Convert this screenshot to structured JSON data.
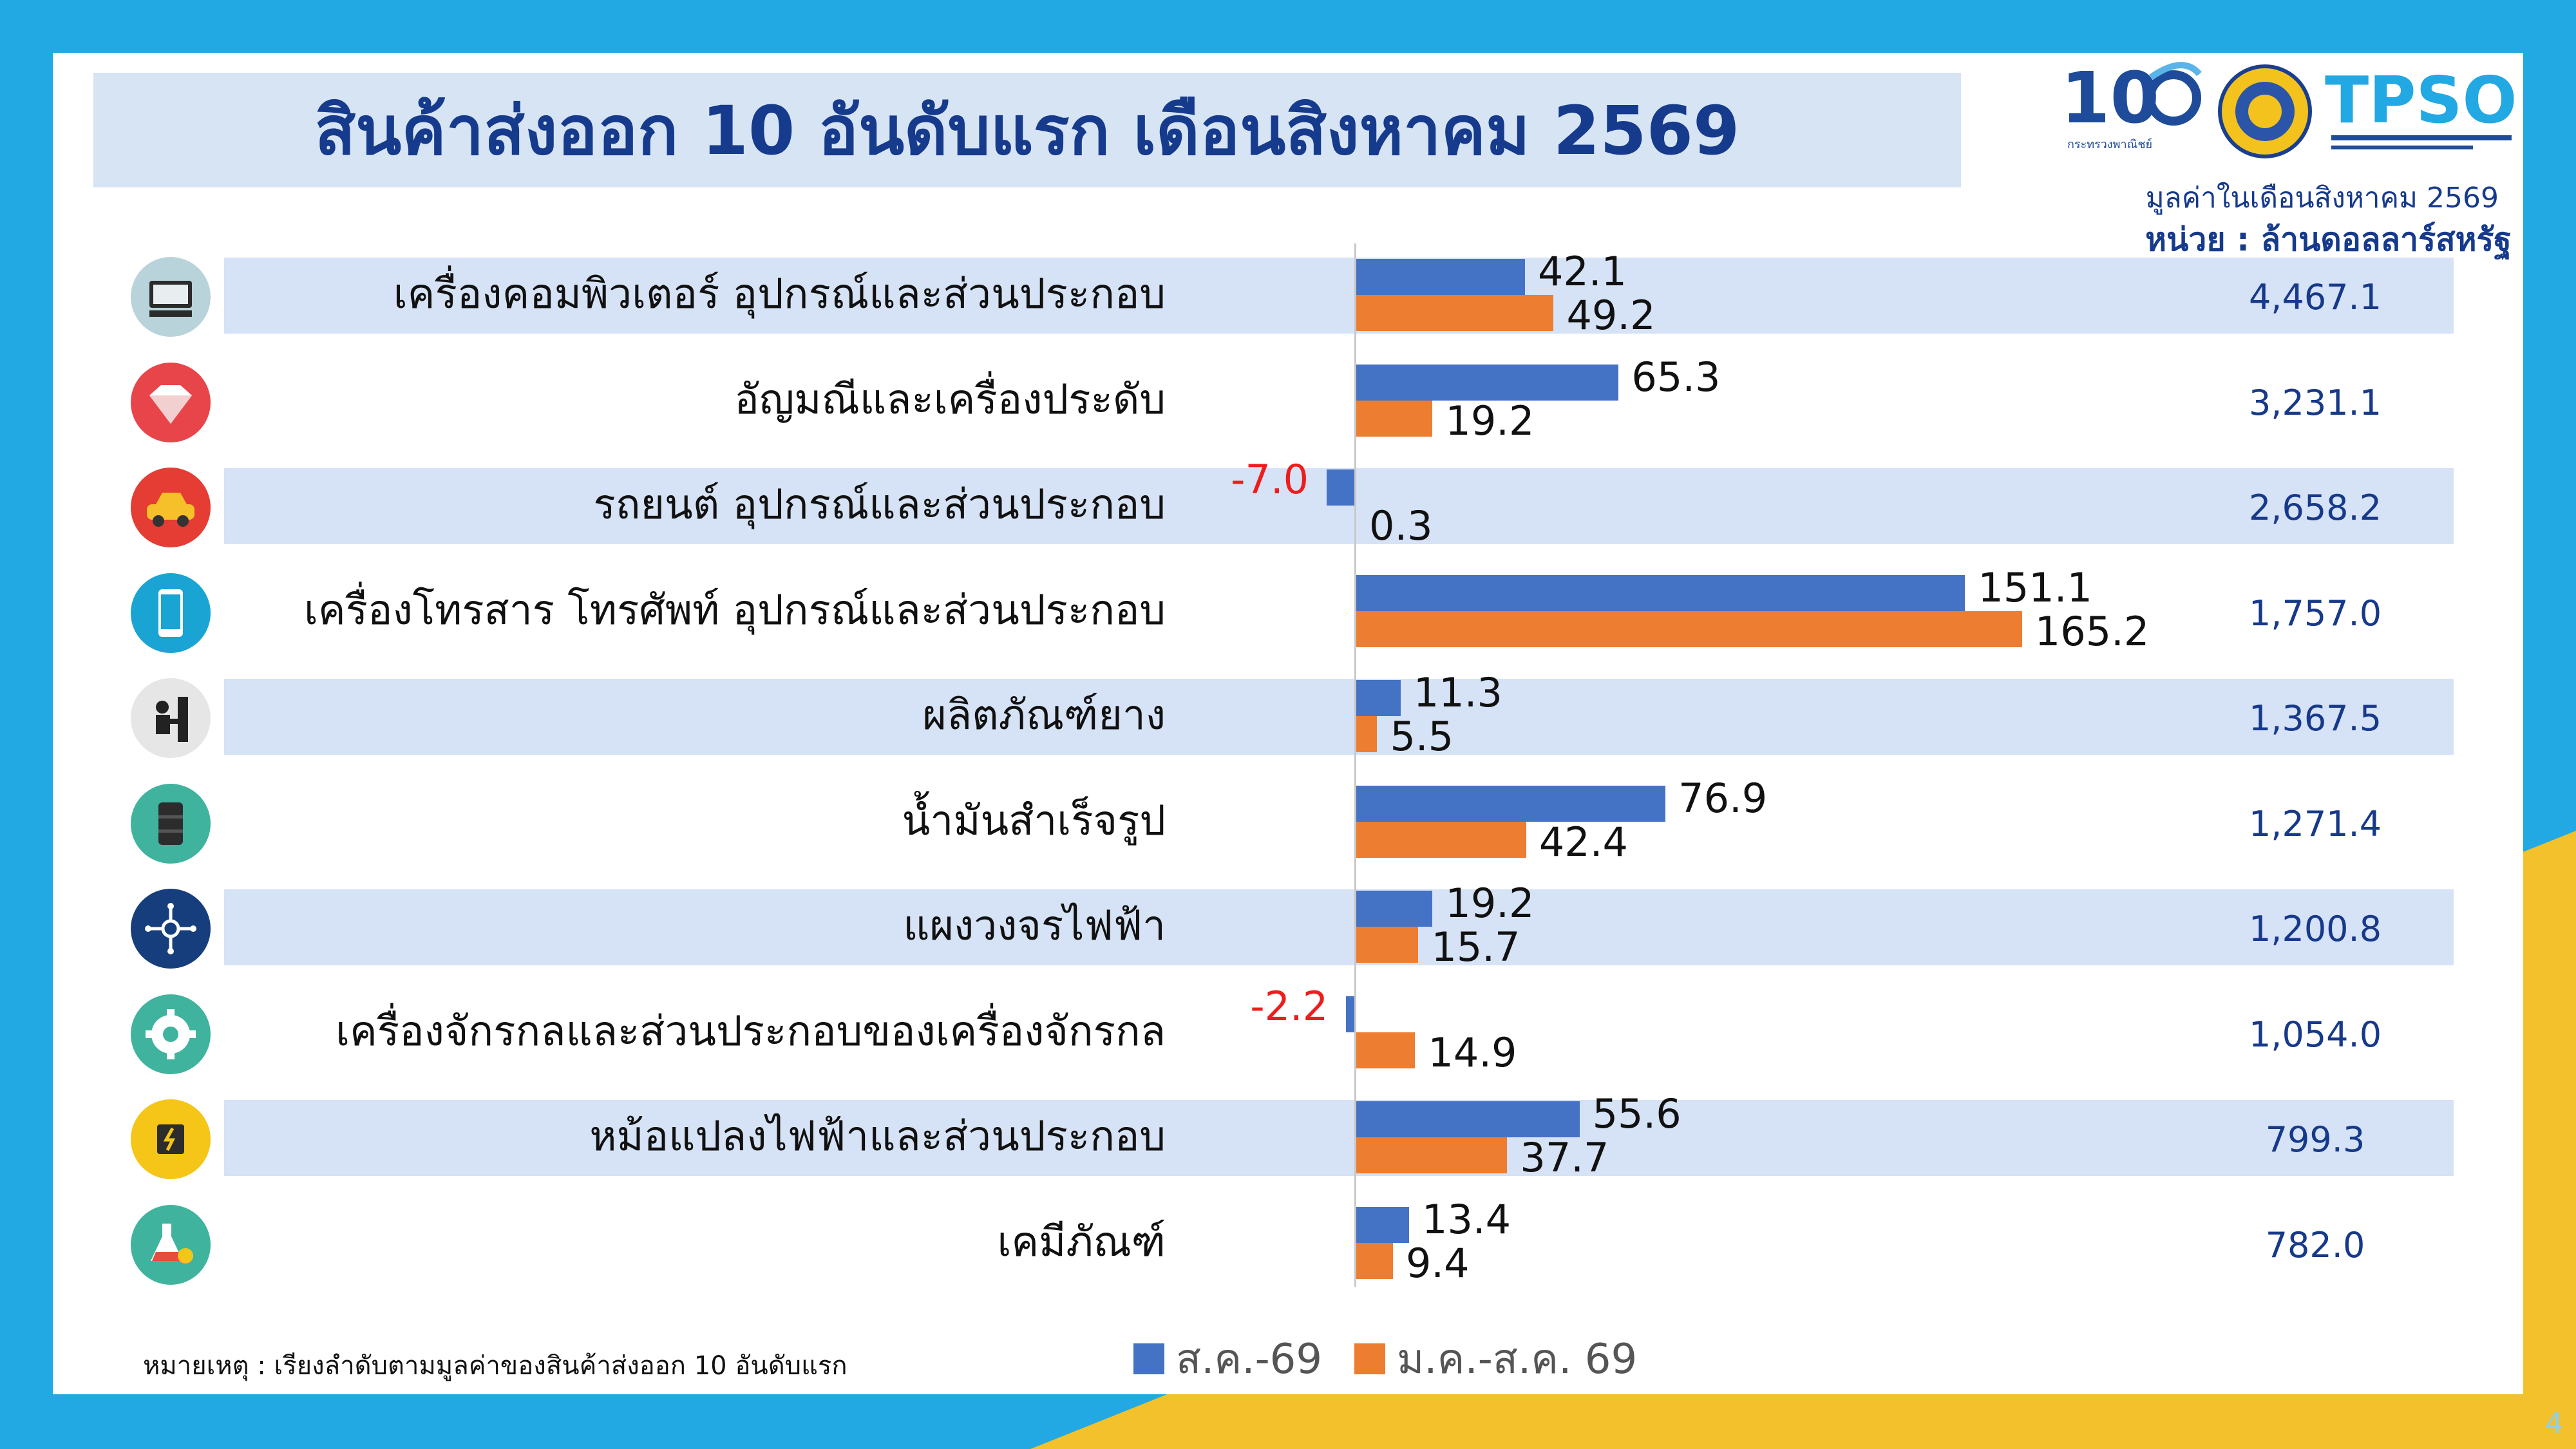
{
  "page": {
    "title": "สินค้าส่งออก 10 อันดับแรก เดือนสิงหาคม 2569",
    "unit_line1": "มูลค่าในเดือนสิงหาคม 2569",
    "unit_line2": "หน่วย : ล้านดอลลาร์สหรัฐ",
    "note": "หมายเหตุ : เรียงลำดับตามมูลค่าของสินค้าส่งออก 10 อันดับแรก",
    "page_number": "4",
    "logo_106_text": "กระทรวงพาณิชย์",
    "logo_tpso_text": "TPSO"
  },
  "colors": {
    "aug69": "#4472c4",
    "jan_aug69": "#ed7d31",
    "negative": "#ee1d1d",
    "accent": "#163a8c"
  },
  "chart_data": {
    "type": "bar",
    "orientation": "horizontal",
    "categories": [
      "เครื่องคอมพิวเตอร์ อุปกรณ์และส่วนประกอบ",
      "อัญมณีและเครื่องประดับ",
      "รถยนต์ อุปกรณ์และส่วนประกอบ",
      "เครื่องโทรสาร โทรศัพท์ อุปกรณ์และส่วนประกอบ",
      "ผลิตภัณฑ์ยาง",
      "น้ำมันสำเร็จรูป",
      "แผงวงจรไฟฟ้า",
      "เครื่องจักรกลและส่วนประกอบของเครื่องจักรกล",
      "หม้อแปลงไฟฟ้าและส่วนประกอบ",
      "เคมีภัณฑ์"
    ],
    "series": [
      {
        "name": "ส.ค.-69",
        "values": [
          42.1,
          65.3,
          -7.0,
          151.1,
          11.3,
          76.9,
          19.2,
          -2.2,
          55.6,
          13.4
        ],
        "labels": [
          "42.1",
          "65.3",
          "-7.0",
          "151.1",
          "11.3",
          "76.9",
          "19.2",
          "-2.2",
          "55.6",
          "13.4"
        ]
      },
      {
        "name": "ม.ค.-ส.ค. 69",
        "values": [
          49.2,
          19.2,
          0.3,
          165.2,
          5.5,
          42.4,
          15.7,
          14.9,
          37.7,
          9.4
        ],
        "labels": [
          "49.2",
          "19.2",
          "0.3",
          "165.2",
          "5.5",
          "42.4",
          "15.7",
          "14.9",
          "37.7",
          "9.4"
        ]
      }
    ],
    "totals": [
      "4,467.1",
      "3,231.1",
      "2,658.2",
      "1,757.0",
      "1,367.5",
      "1,271.4",
      "1,200.8",
      "1,054.0",
      "799.3",
      "782.0"
    ],
    "icons": [
      "computer-icon",
      "gem-icon",
      "car-icon",
      "smartphone-icon",
      "rubber-worker-icon",
      "oil-barrel-icon",
      "circuit-icon",
      "gear-icon",
      "transformer-icon",
      "chemical-flask-icon"
    ],
    "banded_rows": [
      0,
      2,
      4,
      6,
      8
    ],
    "xlim": [
      -7.0,
      165.2
    ]
  }
}
